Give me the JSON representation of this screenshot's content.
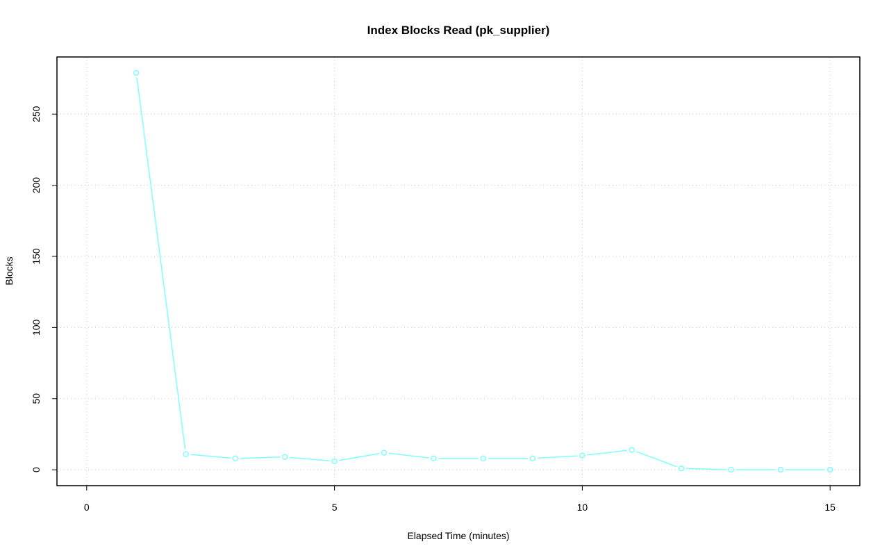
{
  "chart_data": {
    "type": "line",
    "title": "Index Blocks Read (pk_supplier)",
    "xlabel": "Elapsed Time (minutes)",
    "ylabel": "Blocks",
    "x": [
      1,
      2,
      3,
      4,
      5,
      6,
      7,
      8,
      9,
      10,
      11,
      12,
      13,
      14,
      15
    ],
    "series": [
      {
        "values": [
          279,
          11,
          8,
          9,
          6,
          12,
          8,
          8,
          8,
          10,
          14,
          1,
          0,
          0,
          0
        ],
        "color": "#7fffff"
      }
    ],
    "xlim": [
      -0.6,
      15.6
    ],
    "ylim": [
      -11.16,
      290.16
    ],
    "xticks": [
      0,
      5,
      10,
      15
    ],
    "yticks": [
      0,
      50,
      100,
      150,
      200,
      250
    ],
    "grid": true,
    "grid_color": "#c8c8c8",
    "markers": "open-circle"
  }
}
